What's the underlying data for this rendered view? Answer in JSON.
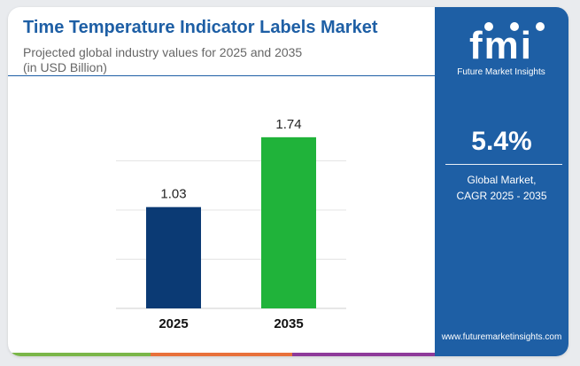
{
  "header": {
    "title": "Time Temperature Indicator Labels Market",
    "subtitle_line1": "Projected global industry values for 2025 and 2035",
    "subtitle_line2": "(in USD Billion)"
  },
  "chart_data": {
    "type": "bar",
    "categories": [
      "2025",
      "2035"
    ],
    "values": [
      1.03,
      1.74
    ],
    "value_labels": [
      "1.03",
      "1.74"
    ],
    "bar_colors": [
      "#0b3a74",
      "#20b33a"
    ],
    "ylim": [
      0,
      2
    ],
    "grid": true,
    "xlabel": "",
    "ylabel": ""
  },
  "sidebar": {
    "logo_text": "fmi",
    "brand": "Future Market Insights",
    "cagr_value": "5.4%",
    "cagr_label_line1": "Global Market,",
    "cagr_label_line2": "CAGR 2025 - 2035",
    "website": "www.futuremarketinsights.com"
  },
  "colors": {
    "brand_blue": "#1e5fa5",
    "bar_2025": "#0b3a74",
    "bar_2035": "#20b33a",
    "footer_strip": [
      "#7ab648",
      "#e8713a",
      "#8e3a9a"
    ]
  }
}
